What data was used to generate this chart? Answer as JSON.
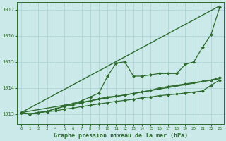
{
  "xlabel": "Graphe pression niveau de la mer (hPa)",
  "xlim": [
    -0.5,
    23.5
  ],
  "ylim": [
    1012.6,
    1017.3
  ],
  "yticks": [
    1013,
    1014,
    1015,
    1016,
    1017
  ],
  "xticks": [
    0,
    1,
    2,
    3,
    4,
    5,
    6,
    7,
    8,
    9,
    10,
    11,
    12,
    13,
    14,
    15,
    16,
    17,
    18,
    19,
    20,
    21,
    22,
    23
  ],
  "bg_color": "#cce9ea",
  "grid_color": "#aad0d2",
  "line_color": "#2d6b2d",
  "lines": [
    {
      "x": [
        0,
        23
      ],
      "y": [
        1013.05,
        1017.15
      ],
      "marker": null,
      "markersize": 0,
      "linewidth": 1.0
    },
    {
      "x": [
        0,
        1,
        2,
        3,
        4,
        5,
        6,
        7,
        8,
        9,
        10,
        11,
        12,
        13,
        14,
        15,
        16,
        17,
        18,
        19,
        20,
        21,
        22,
        23
      ],
      "y": [
        1013.05,
        1013.0,
        1013.05,
        1013.1,
        1013.2,
        1013.3,
        1013.4,
        1013.5,
        1013.65,
        1013.8,
        1014.45,
        1014.95,
        1015.0,
        1014.45,
        1014.45,
        1014.5,
        1014.55,
        1014.55,
        1014.55,
        1014.9,
        1015.0,
        1015.55,
        1016.05,
        1017.1
      ],
      "marker": "D",
      "markersize": 2.0,
      "linewidth": 0.9
    },
    {
      "x": [
        0,
        1,
        2,
        3,
        4,
        5,
        6,
        7,
        8,
        9,
        10,
        11,
        12,
        13,
        14,
        15,
        16,
        17,
        18,
        19,
        20,
        21,
        22,
        23
      ],
      "y": [
        1013.05,
        1013.0,
        1013.05,
        1013.1,
        1013.2,
        1013.28,
        1013.35,
        1013.42,
        1013.5,
        1013.58,
        1013.65,
        1013.68,
        1013.72,
        1013.78,
        1013.85,
        1013.9,
        1014.0,
        1014.05,
        1014.1,
        1014.15,
        1014.2,
        1014.25,
        1014.3,
        1014.4
      ],
      "marker": "D",
      "markersize": 2.0,
      "linewidth": 0.9
    },
    {
      "x": [
        0,
        1,
        2,
        3,
        4,
        5,
        6,
        7,
        8,
        9,
        10,
        11,
        12,
        13,
        14,
        15,
        16,
        17,
        18,
        19,
        20,
        21,
        22,
        23
      ],
      "y": [
        1013.05,
        1013.0,
        1013.05,
        1013.08,
        1013.12,
        1013.18,
        1013.22,
        1013.28,
        1013.33,
        1013.38,
        1013.43,
        1013.48,
        1013.52,
        1013.56,
        1013.62,
        1013.65,
        1013.7,
        1013.73,
        1013.76,
        1013.8,
        1013.84,
        1013.88,
        1014.1,
        1014.3
      ],
      "marker": "D",
      "markersize": 2.0,
      "linewidth": 0.9
    },
    {
      "x": [
        0,
        23
      ],
      "y": [
        1013.05,
        1014.35
      ],
      "marker": null,
      "markersize": 0,
      "linewidth": 1.0
    }
  ]
}
